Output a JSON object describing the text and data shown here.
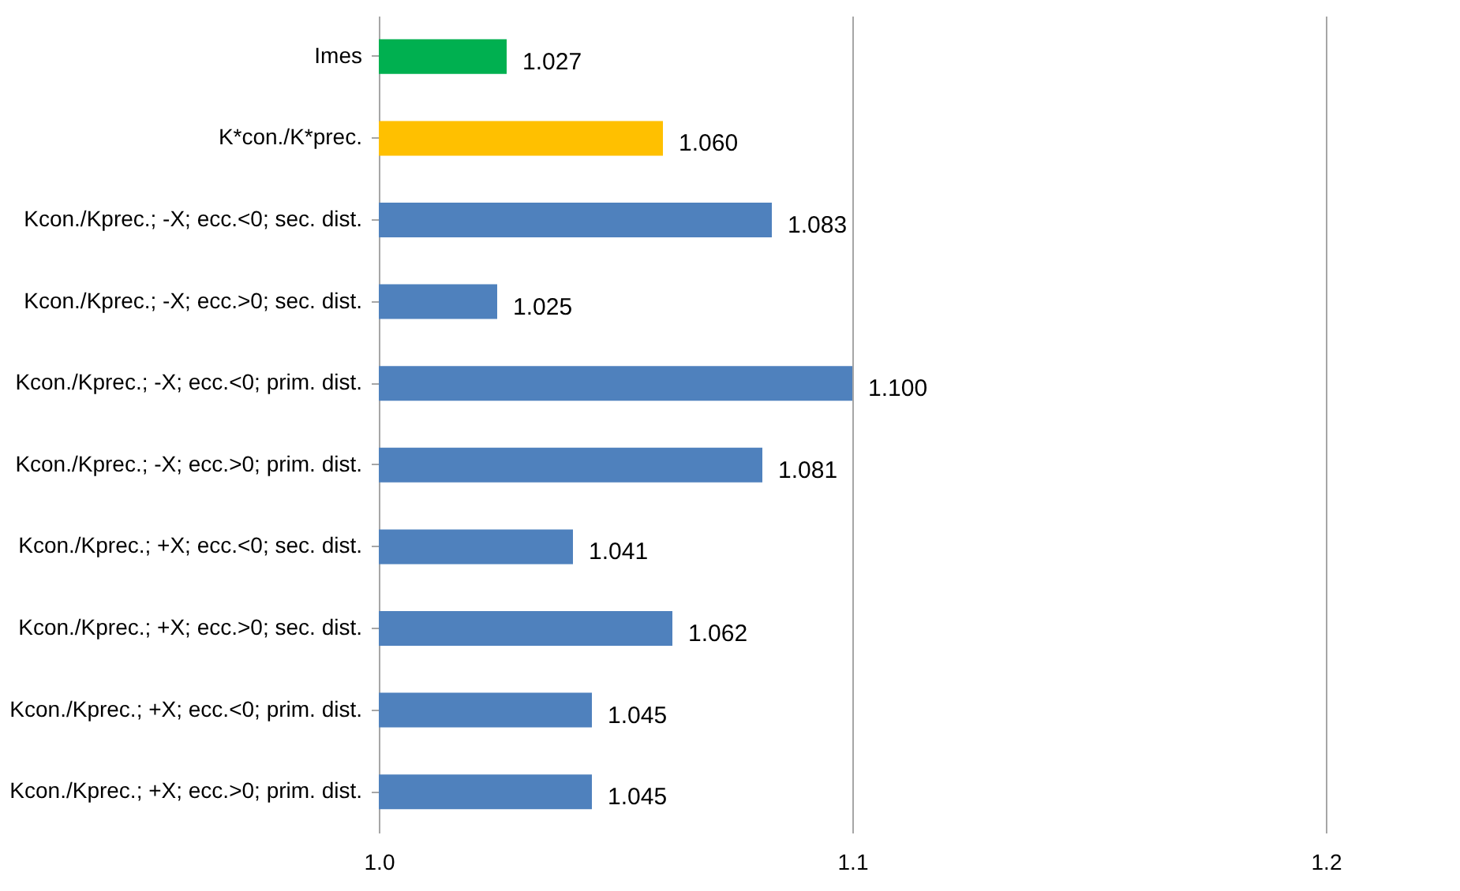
{
  "chart_data": {
    "type": "bar",
    "orientation": "horizontal",
    "categories": [
      "Imes",
      "K*con./K*prec.",
      "Kcon./Kprec.; -X; ecc.<0; sec. dist.",
      "Kcon./Kprec.; -X; ecc.>0; sec. dist.",
      "Kcon./Kprec.; -X; ecc.<0; prim. dist.",
      "Kcon./Kprec.; -X; ecc.>0; prim. dist.",
      "Kcon./Kprec.; +X; ecc.<0; sec. dist.",
      "Kcon./Kprec.; +X; ecc.>0; sec. dist.",
      "Kcon./Kprec.; +X; ecc.<0; prim. dist.",
      "Kcon./Kprec.; +X; ecc.>0; prim. dist."
    ],
    "values": [
      1.027,
      1.06,
      1.083,
      1.025,
      1.1,
      1.081,
      1.041,
      1.062,
      1.045,
      1.045
    ],
    "value_labels": [
      "1.027",
      "1.060",
      "1.083",
      "1.025",
      "1.100",
      "1.081",
      "1.041",
      "1.062",
      "1.045",
      "1.045"
    ],
    "colors": [
      "#00b050",
      "#ffc000",
      "#4f81bd",
      "#4f81bd",
      "#4f81bd",
      "#4f81bd",
      "#4f81bd",
      "#4f81bd",
      "#4f81bd",
      "#4f81bd"
    ],
    "xlim": [
      1.0,
      1.2
    ],
    "xticks": [
      {
        "value": 1.0,
        "label": "1.0"
      },
      {
        "value": 1.1,
        "label": "1.1"
      },
      {
        "value": 1.2,
        "label": "1.2"
      }
    ],
    "grid": "x",
    "legend": false
  }
}
